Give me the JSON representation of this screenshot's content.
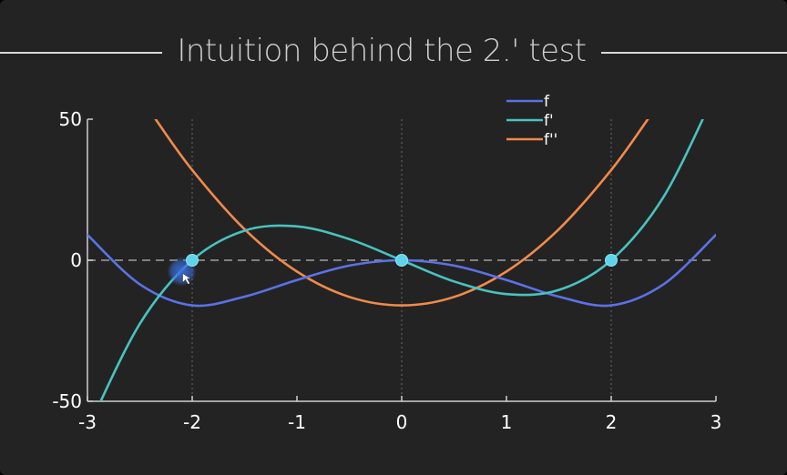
{
  "title": "Intuition behind the 2.' test",
  "colors": {
    "background": "#232323",
    "axis": "#d0d0d0",
    "zero_line": "#a0a0a0",
    "marker": "#5fd3ea",
    "cursor": "#3a6fe0"
  },
  "chart_data": {
    "type": "line",
    "xlim": [
      -3,
      3
    ],
    "ylim": [
      -50,
      50
    ],
    "xticks": [
      "-3",
      "-2",
      "-1",
      "0",
      "1",
      "2",
      "3"
    ],
    "yticks": [
      "50",
      "0",
      "-50"
    ],
    "grid": "dotted vertical lines at x = -2, 0, 2",
    "zero_line": "dashed horizontal line at y = 0",
    "legend_position": "top-right",
    "series": [
      {
        "name": "f",
        "color": "#5b72e6",
        "x": [
          -3,
          -2.5,
          -2,
          -1.5,
          -1,
          -0.5,
          0,
          0.5,
          1,
          1.5,
          2,
          2.5,
          3
        ],
        "y": [
          9,
          -8.5,
          -16,
          -12.9,
          -7,
          -1.9,
          0,
          -1.9,
          -7,
          -12.9,
          -16,
          -8.5,
          9
        ]
      },
      {
        "name": "f'",
        "color": "#49c2c0",
        "x": [
          -3,
          -2.5,
          -2,
          -1.5,
          -1,
          -0.5,
          0,
          0.5,
          1,
          1.5,
          2,
          2.5,
          3
        ],
        "y": [
          -60,
          -22.5,
          0,
          10.5,
          12,
          7.5,
          0,
          -7.5,
          -12,
          -10.5,
          0,
          22.5,
          60
        ]
      },
      {
        "name": "f''",
        "color": "#f28a4b",
        "x": [
          -2.35,
          -2,
          -1.5,
          -1,
          -0.5,
          0,
          0.5,
          1,
          1.5,
          2,
          2.35
        ],
        "y": [
          50,
          32,
          11,
          -4,
          -13,
          -16,
          -13,
          -4,
          11,
          32,
          50
        ]
      }
    ],
    "markers": [
      {
        "x": -2,
        "y": 0
      },
      {
        "x": 0,
        "y": 0
      },
      {
        "x": 2,
        "y": 0
      }
    ],
    "cursor": {
      "x": -2.1,
      "y": -4
    }
  }
}
